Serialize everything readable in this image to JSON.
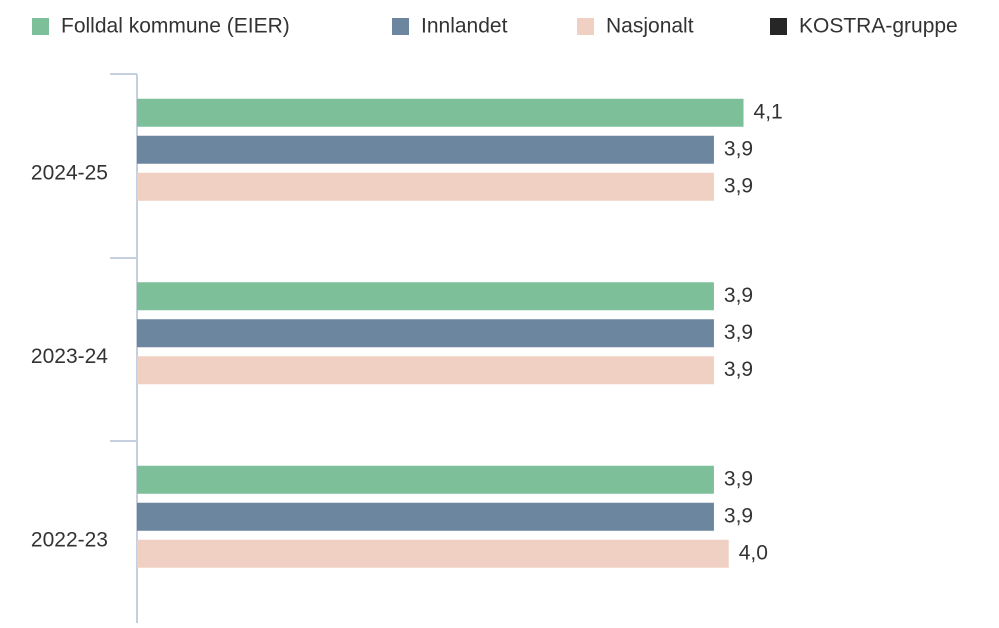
{
  "chart_data": {
    "type": "bar",
    "orientation": "horizontal",
    "categories": [
      "2024-25",
      "2023-24",
      "2022-23"
    ],
    "series": [
      {
        "name": "Folldal kommune (EIER)",
        "color": "#7dbf98",
        "values": [
          4.1,
          3.9,
          3.9
        ],
        "value_labels": [
          "4,1",
          "3,9",
          "3,9"
        ]
      },
      {
        "name": "Innlandet",
        "color": "#6b869e",
        "values": [
          3.9,
          3.9,
          3.9
        ],
        "value_labels": [
          "3,9",
          "3,9",
          "3,9"
        ]
      },
      {
        "name": "Nasjonalt",
        "color": "#f0d0c2",
        "values": [
          3.9,
          3.9,
          4.0
        ],
        "value_labels": [
          "3,9",
          "3,9",
          "4,0"
        ]
      },
      {
        "name": "KOSTRA-gruppe",
        "color": "#262626",
        "values": [
          null,
          null,
          null
        ]
      }
    ],
    "xlim": [
      0,
      5.8
    ]
  }
}
